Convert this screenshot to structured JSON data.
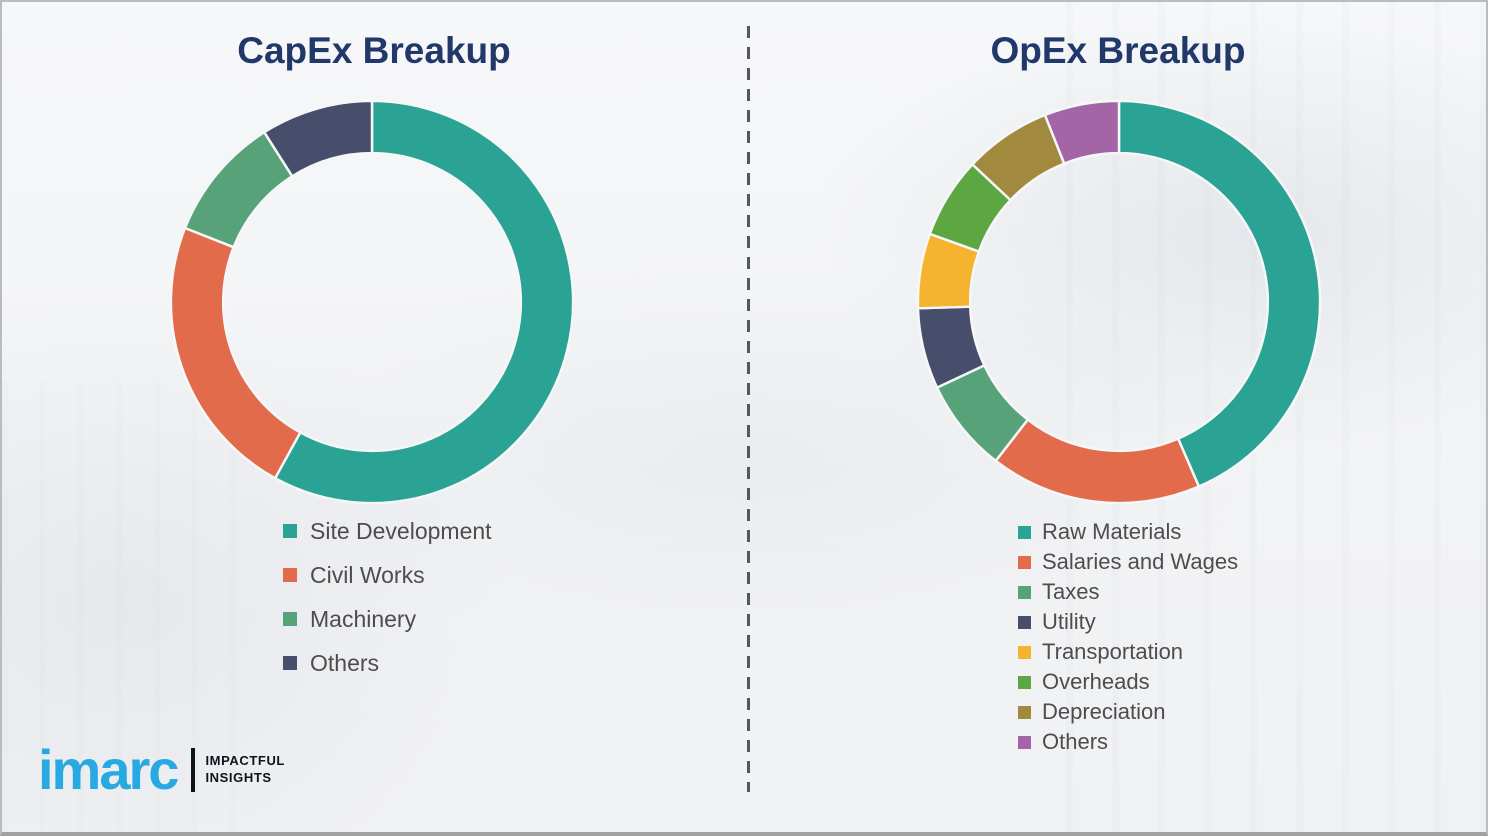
{
  "page": {
    "background_color": "#f3f4f6",
    "divider_color": "#54575b",
    "title_color": "#21386b",
    "legend_text_color": "#4d4d4d"
  },
  "logo": {
    "brand": "imarc",
    "brand_color": "#29a9e1",
    "tagline_line1": "IMPACTFUL",
    "tagline_line2": "INSIGHTS"
  },
  "chart_data": [
    {
      "type": "pie",
      "subtype": "donut",
      "title": "CapEx Breakup",
      "legend_position": "bottom",
      "start_angle_deg": 0,
      "direction": "clockwise",
      "segments": [
        {
          "label": "Site Development",
          "value": 58,
          "color": "#2aa394"
        },
        {
          "label": "Civil Works",
          "value": 23,
          "color": "#e26b4c"
        },
        {
          "label": "Machinery",
          "value": 10,
          "color": "#58a279"
        },
        {
          "label": "Others",
          "value": 9,
          "color": "#464e6b"
        }
      ]
    },
    {
      "type": "pie",
      "subtype": "donut",
      "title": "OpEx Breakup",
      "legend_position": "bottom",
      "start_angle_deg": 0,
      "direction": "clockwise",
      "segments": [
        {
          "label": "Raw Materials",
          "value": 43.5,
          "color": "#2aa394"
        },
        {
          "label": "Salaries and Wages",
          "value": 17,
          "color": "#e26b4c"
        },
        {
          "label": "Taxes",
          "value": 7.5,
          "color": "#58a279"
        },
        {
          "label": "Utility",
          "value": 6.5,
          "color": "#464e6b"
        },
        {
          "label": "Transportation",
          "value": 6,
          "color": "#f5b32f"
        },
        {
          "label": "Overheads",
          "value": 6.5,
          "color": "#5ca742"
        },
        {
          "label": "Depreciation",
          "value": 7,
          "color": "#a18a3e"
        },
        {
          "label": "Others",
          "value": 6,
          "color": "#a465a6"
        }
      ]
    }
  ]
}
